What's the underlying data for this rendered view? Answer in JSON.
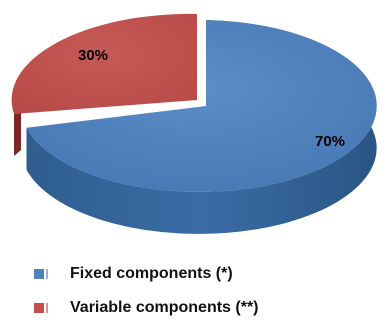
{
  "chart_data": {
    "type": "pie",
    "style": "3d",
    "title": "",
    "slices": [
      {
        "name": "Fixed components (*)",
        "value": 70,
        "label": "70%",
        "color": "#4f81bd"
      },
      {
        "name": "Variable components (**)",
        "value": 30,
        "label": "30%",
        "color": "#c0504d"
      }
    ],
    "legend_position": "bottom-left",
    "exploded": true
  }
}
